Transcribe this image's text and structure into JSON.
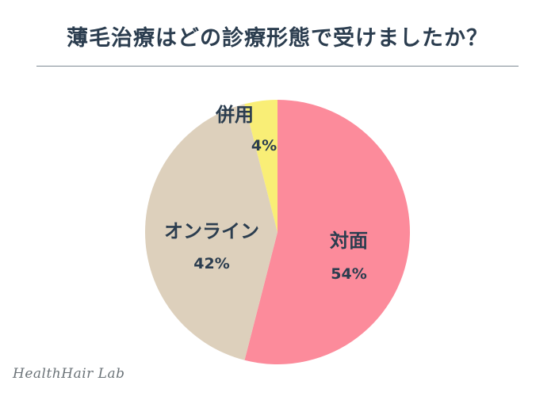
{
  "title": "薄毛治療はどの診療形態で受けましたか？",
  "brand": "HealthHair Lab",
  "colors": {
    "title_text": "#2b3d4f",
    "label_text": "#2b3d4f"
  },
  "chart_data": {
    "type": "pie",
    "title": "薄毛治療はどの診療形態で受けましたか？",
    "start": "12 o'clock",
    "direction": "clockwise",
    "slices": [
      {
        "label": "対面",
        "value": 54,
        "value_label": "54%",
        "color": "#fc8b9b"
      },
      {
        "label": "オンライン",
        "value": 42,
        "value_label": "42%",
        "color": "#ddd0bc"
      },
      {
        "label": "併用",
        "value": 4,
        "value_label": "4%",
        "color": "#f9ee76"
      }
    ]
  }
}
